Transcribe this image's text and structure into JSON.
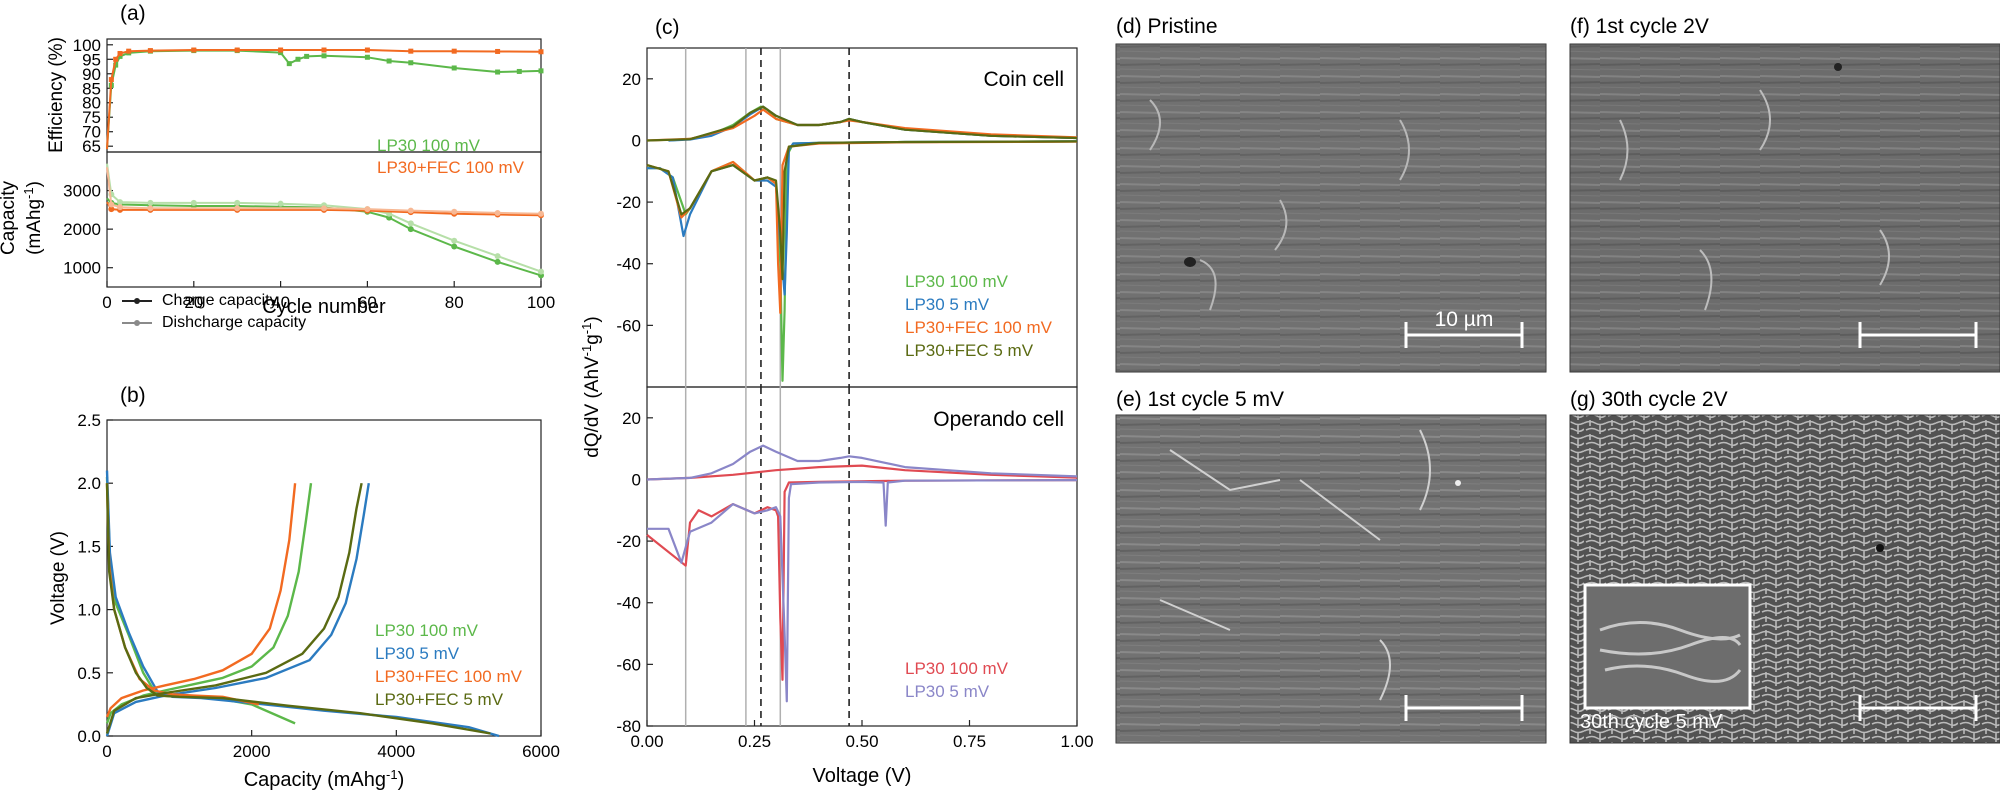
{
  "colors": {
    "green": "#5cb84a",
    "orange": "#f26a21",
    "blue": "#2b7bc0",
    "olive": "#5a6a12",
    "red": "#e04a52",
    "lavender": "#8a86c8",
    "black": "#222222",
    "gray": "#8a8a8a",
    "lightgreen": "#b6dfa8",
    "lightorange": "#f7b894"
  },
  "panels": {
    "a": "(a)",
    "b": "(b)",
    "c": "(c)",
    "d": "(d) Pristine",
    "e": "(e) 1st cycle 5 mV",
    "f": "(f) 1st cycle 2V",
    "g": "(g) 30th cycle 2V",
    "scale_bar": "10 µm",
    "inset": "30th cycle 5 mV"
  },
  "chart_data": [
    {
      "id": "a-eff",
      "type": "line",
      "ylabel": "Efficiency (%)",
      "ylim": [
        63,
        102
      ],
      "xlim": [
        0,
        100
      ],
      "yticks": [
        65,
        70,
        75,
        80,
        85,
        90,
        95,
        100
      ],
      "legend": [
        "LP30 100 mV",
        "LP30+FEC 100 mV"
      ],
      "series": [
        {
          "name": "LP30 100 mV",
          "color": "green",
          "x": [
            0,
            1,
            2,
            3,
            5,
            10,
            20,
            30,
            40,
            42,
            44,
            46,
            50,
            60,
            65,
            70,
            80,
            90,
            95,
            100
          ],
          "y": [
            64,
            86,
            93,
            96,
            97.2,
            97.8,
            98,
            98,
            97.3,
            93.5,
            95,
            96,
            96.2,
            95.7,
            94.4,
            93.8,
            92,
            90.6,
            90.8,
            91
          ]
        },
        {
          "name": "LP30+FEC 100 mV",
          "color": "orange",
          "x": [
            0,
            1,
            2,
            3,
            5,
            10,
            20,
            30,
            40,
            50,
            60,
            70,
            80,
            90,
            100
          ],
          "y": [
            64,
            88,
            95,
            97,
            97.8,
            98,
            98.2,
            98.2,
            98.2,
            98.2,
            98.2,
            97.8,
            97.8,
            97.7,
            97.6
          ]
        }
      ]
    },
    {
      "id": "a-cap",
      "type": "line",
      "ylabel": "Capacity (mAhg-1)",
      "xlabel": "Cycle number",
      "ylim": [
        500,
        4000
      ],
      "xlim": [
        0,
        100
      ],
      "yticks": [
        1000,
        2000,
        3000
      ],
      "xticks": [
        0,
        20,
        40,
        60,
        80,
        100
      ],
      "legend": [
        "Charge capacity",
        "Dishcharge capacity"
      ],
      "series": [
        {
          "name": "LP30 charge",
          "color": "green",
          "x": [
            0,
            1,
            3,
            10,
            20,
            30,
            40,
            50,
            60,
            65,
            70,
            80,
            90,
            100
          ],
          "y": [
            2800,
            2680,
            2640,
            2620,
            2600,
            2600,
            2580,
            2560,
            2450,
            2300,
            2000,
            1550,
            1150,
            800
          ]
        },
        {
          "name": "LP30 discharge",
          "color": "lightgreen",
          "x": [
            0,
            1,
            3,
            10,
            20,
            30,
            40,
            50,
            60,
            65,
            70,
            80,
            90,
            100
          ],
          "y": [
            3700,
            2900,
            2700,
            2680,
            2680,
            2680,
            2660,
            2620,
            2520,
            2400,
            2150,
            1700,
            1300,
            900
          ]
        },
        {
          "name": "LP30+FEC charge",
          "color": "orange",
          "x": [
            0,
            1,
            3,
            10,
            30,
            50,
            60,
            70,
            80,
            90,
            100
          ],
          "y": [
            2700,
            2520,
            2500,
            2500,
            2500,
            2500,
            2480,
            2440,
            2400,
            2380,
            2360
          ]
        },
        {
          "name": "LP30+FEC discharge",
          "color": "lightorange",
          "x": [
            0,
            1,
            3,
            10,
            30,
            50,
            60,
            70,
            80,
            90,
            100
          ],
          "y": [
            3600,
            2640,
            2570,
            2540,
            2540,
            2540,
            2520,
            2480,
            2450,
            2420,
            2400
          ]
        }
      ]
    },
    {
      "id": "b",
      "type": "line",
      "xlabel": "Capacity (mAhg-1)",
      "ylabel": "Voltage (V)",
      "xlim": [
        0,
        6000
      ],
      "ylim": [
        0,
        2.5
      ],
      "xticks": [
        0,
        2000,
        4000,
        6000
      ],
      "yticks": [
        0.0,
        0.5,
        1.0,
        1.5,
        2.0,
        2.5
      ],
      "legend": [
        "LP30 100 mV",
        "LP30 5 mV",
        "LP30+FEC 100 mV",
        "LP30+FEC 5 mV"
      ],
      "series": [
        {
          "name": "LP30 100 mV discharge",
          "color": "green",
          "x": [
            0,
            40,
            120,
            300,
            500,
            650,
            750,
            1000,
            1500,
            2000,
            2600
          ],
          "y": [
            2.05,
            1.4,
            1.05,
            0.8,
            0.5,
            0.36,
            0.32,
            0.31,
            0.3,
            0.25,
            0.1
          ]
        },
        {
          "name": "LP30 100 mV charge",
          "color": "green",
          "x": [
            0,
            50,
            200,
            500,
            800,
            1200,
            1600,
            2000,
            2300,
            2500,
            2650,
            2750,
            2820
          ],
          "y": [
            0.1,
            0.18,
            0.25,
            0.32,
            0.36,
            0.41,
            0.46,
            0.55,
            0.7,
            0.95,
            1.3,
            1.7,
            2.0
          ]
        },
        {
          "name": "LP30 5 mV discharge",
          "color": "blue",
          "x": [
            0,
            40,
            120,
            300,
            500,
            700,
            900,
            1300,
            2000,
            3000,
            4000,
            5000,
            5420
          ],
          "y": [
            2.1,
            1.45,
            1.1,
            0.82,
            0.55,
            0.35,
            0.31,
            0.3,
            0.26,
            0.2,
            0.15,
            0.07,
            0.0
          ]
        },
        {
          "name": "LP30 5 mV charge",
          "color": "blue",
          "x": [
            0,
            100,
            400,
            800,
            1500,
            2200,
            2800,
            3100,
            3300,
            3450,
            3550,
            3620
          ],
          "y": [
            0.0,
            0.18,
            0.27,
            0.32,
            0.38,
            0.46,
            0.6,
            0.8,
            1.05,
            1.4,
            1.75,
            2.0
          ]
        },
        {
          "name": "LP30+FEC 100 mV discharge",
          "color": "orange",
          "x": [
            0,
            30,
            100,
            250,
            450,
            650,
            900,
            1200,
            1600,
            2100
          ],
          "y": [
            2.0,
            1.35,
            1.0,
            0.7,
            0.45,
            0.36,
            0.33,
            0.32,
            0.31,
            0.25
          ]
        },
        {
          "name": "LP30+FEC 100 mV charge",
          "color": "orange",
          "x": [
            0,
            50,
            200,
            500,
            800,
            1200,
            1600,
            2000,
            2250,
            2400,
            2520,
            2600
          ],
          "y": [
            0.15,
            0.22,
            0.3,
            0.36,
            0.4,
            0.45,
            0.52,
            0.65,
            0.85,
            1.15,
            1.55,
            2.0
          ]
        },
        {
          "name": "LP30+FEC 5 mV discharge",
          "color": "olive",
          "x": [
            0,
            30,
            100,
            250,
            400,
            550,
            700,
            1000,
            1600,
            2500,
            3500,
            4500,
            5300
          ],
          "y": [
            2.0,
            1.3,
            1.0,
            0.7,
            0.5,
            0.38,
            0.32,
            0.31,
            0.3,
            0.24,
            0.18,
            0.1,
            0.02
          ]
        },
        {
          "name": "LP30+FEC 5 mV charge",
          "color": "olive",
          "x": [
            0,
            100,
            400,
            800,
            1500,
            2200,
            2700,
            3000,
            3200,
            3350,
            3450,
            3520
          ],
          "y": [
            0.02,
            0.2,
            0.3,
            0.34,
            0.4,
            0.5,
            0.65,
            0.85,
            1.1,
            1.45,
            1.8,
            2.0
          ]
        }
      ]
    },
    {
      "id": "c-coin",
      "type": "line",
      "annotation": "Coin cell",
      "ylim": [
        -80,
        30
      ],
      "xlim": [
        0,
        1
      ],
      "yticks": [
        -60,
        -40,
        -20,
        0,
        20
      ],
      "ylabel": "dQ/dV (AhV-1g-1)",
      "vlines_solid": [
        0.09,
        0.23,
        0.31
      ],
      "vlines_dashed": [
        0.265,
        0.47
      ],
      "legend": [
        "LP30 100 mV",
        "LP30 5 mV",
        "LP30+FEC 100 mV",
        "LP30+FEC 5 mV"
      ],
      "series": [
        {
          "name": "LP30 100 mV charge",
          "color": "green",
          "x": [
            0.05,
            0.1,
            0.15,
            0.2,
            0.24,
            0.265,
            0.28,
            0.3,
            0.35,
            0.4,
            0.45,
            0.47,
            0.5,
            0.6,
            0.8,
            1.0
          ],
          "y": [
            0,
            0.5,
            2,
            5,
            9,
            11,
            10,
            7,
            5,
            5,
            6,
            7,
            6,
            3.5,
            1.5,
            0.8
          ]
        },
        {
          "name": "LP30 100 mV discharge",
          "color": "green",
          "x": [
            1.0,
            0.6,
            0.4,
            0.34,
            0.325,
            0.32,
            0.315,
            0.31,
            0.3,
            0.28,
            0.25,
            0.2,
            0.15,
            0.1,
            0.09,
            0.06,
            0.03,
            0.0
          ],
          "y": [
            -0.3,
            -0.5,
            -0.8,
            -1,
            -5,
            -55,
            -78,
            -40,
            -14,
            -12,
            -13,
            -7,
            -10,
            -22,
            -24,
            -12,
            -9,
            -9
          ]
        },
        {
          "name": "LP30 5 mV charge",
          "color": "blue",
          "x": [
            0.05,
            0.1,
            0.15,
            0.2,
            0.24,
            0.27,
            0.3,
            0.35,
            0.4,
            0.45,
            0.47,
            0.5,
            0.6,
            0.8,
            1.0
          ],
          "y": [
            0,
            0.3,
            1.5,
            4.5,
            8.5,
            11,
            8,
            5,
            5,
            6,
            7,
            6,
            3.5,
            1.5,
            0.8
          ]
        },
        {
          "name": "LP30 5 mV discharge",
          "color": "blue",
          "x": [
            1.0,
            0.6,
            0.4,
            0.34,
            0.33,
            0.325,
            0.32,
            0.3,
            0.28,
            0.25,
            0.2,
            0.15,
            0.1,
            0.085,
            0.06,
            0.03,
            0.0
          ],
          "y": [
            -0.3,
            -0.5,
            -0.8,
            -1,
            -3,
            -30,
            -50,
            -15,
            -13,
            -13,
            -8,
            -10,
            -24,
            -31,
            -12,
            -9,
            -9
          ]
        },
        {
          "name": "LP30+FEC 100 mV charge",
          "color": "orange",
          "x": [
            0.0,
            0.1,
            0.2,
            0.25,
            0.27,
            0.3,
            0.35,
            0.4,
            0.45,
            0.47,
            0.5,
            0.6,
            0.8,
            1.0
          ],
          "y": [
            0,
            0.5,
            4,
            8,
            10,
            7,
            5,
            5,
            6,
            6.5,
            6,
            4,
            2,
            1
          ]
        },
        {
          "name": "LP30+FEC 100 mV discharge",
          "color": "orange",
          "x": [
            1.0,
            0.6,
            0.4,
            0.33,
            0.315,
            0.31,
            0.305,
            0.3,
            0.28,
            0.25,
            0.2,
            0.15,
            0.1,
            0.08,
            0.05,
            0.0
          ],
          "y": [
            -0.4,
            -0.6,
            -1,
            -2,
            -8,
            -56,
            -40,
            -14,
            -12,
            -13,
            -7,
            -10,
            -22,
            -25,
            -10,
            -8
          ]
        },
        {
          "name": "LP30+FEC 5 mV charge",
          "color": "olive",
          "x": [
            0.0,
            0.1,
            0.2,
            0.24,
            0.27,
            0.3,
            0.35,
            0.4,
            0.45,
            0.47,
            0.5,
            0.6,
            0.8,
            1.0
          ],
          "y": [
            0,
            0.4,
            4.5,
            9,
            11,
            8,
            5,
            5,
            6,
            7,
            6,
            3.5,
            1.5,
            0.8
          ]
        },
        {
          "name": "LP30+FEC 5 mV discharge",
          "color": "olive",
          "x": [
            1.0,
            0.6,
            0.4,
            0.33,
            0.32,
            0.315,
            0.31,
            0.3,
            0.28,
            0.25,
            0.2,
            0.15,
            0.1,
            0.08,
            0.05,
            0.0
          ],
          "y": [
            -0.3,
            -0.5,
            -0.8,
            -2,
            -10,
            -45,
            -30,
            -13,
            -12,
            -13,
            -8,
            -10,
            -22,
            -24,
            -10,
            -8
          ]
        }
      ]
    },
    {
      "id": "c-op",
      "type": "line",
      "annotation": "Operando cell",
      "ylim": [
        -80,
        30
      ],
      "xlim": [
        0,
        1
      ],
      "xticks": [
        0.0,
        0.25,
        0.5,
        0.75,
        1.0
      ],
      "yticks": [
        -80,
        -60,
        -40,
        -20,
        0,
        20
      ],
      "xlabel": "Voltage (V)",
      "vlines_solid": [
        0.09,
        0.23,
        0.31
      ],
      "vlines_dashed": [
        0.265,
        0.47
      ],
      "legend": [
        "LP30 100 mV",
        "LP30 5 mV"
      ],
      "series": [
        {
          "name": "LP30 100 mV charge",
          "color": "red",
          "x": [
            0.0,
            0.1,
            0.2,
            0.3,
            0.4,
            0.5,
            0.6,
            0.8,
            1.0
          ],
          "y": [
            0,
            0.5,
            1.5,
            3,
            4,
            4.5,
            3,
            1.5,
            0.6
          ]
        },
        {
          "name": "LP30 100 mV discharge",
          "color": "red",
          "x": [
            1.0,
            0.6,
            0.4,
            0.33,
            0.32,
            0.315,
            0.31,
            0.305,
            0.3,
            0.28,
            0.25,
            0.2,
            0.15,
            0.12,
            0.1,
            0.09,
            0.0
          ],
          "y": [
            -0.2,
            -0.4,
            -0.8,
            -1,
            -4,
            -65,
            -45,
            -12,
            -10,
            -9,
            -11,
            -8,
            -12,
            -10,
            -14,
            -28,
            -18
          ]
        },
        {
          "name": "LP30 5 mV charge",
          "color": "lavender",
          "x": [
            0.0,
            0.1,
            0.15,
            0.2,
            0.24,
            0.27,
            0.3,
            0.35,
            0.4,
            0.45,
            0.47,
            0.5,
            0.6,
            0.8,
            1.0
          ],
          "y": [
            0,
            0.5,
            2,
            5,
            9,
            11,
            9,
            6,
            6,
            7,
            7.5,
            7,
            4,
            2,
            1
          ]
        },
        {
          "name": "LP30 5 mV discharge",
          "color": "lavender",
          "x": [
            1.0,
            0.6,
            0.56,
            0.555,
            0.55,
            0.5,
            0.4,
            0.335,
            0.33,
            0.325,
            0.32,
            0.31,
            0.3,
            0.28,
            0.25,
            0.2,
            0.15,
            0.1,
            0.08,
            0.05,
            0.0
          ],
          "y": [
            -0.2,
            -0.4,
            -1,
            -15,
            -1,
            -0.8,
            -1,
            -1.5,
            -6,
            -72,
            -50,
            -12,
            -9,
            -10,
            -11,
            -8,
            -14,
            -17,
            -27,
            -16,
            -16
          ]
        }
      ]
    }
  ]
}
